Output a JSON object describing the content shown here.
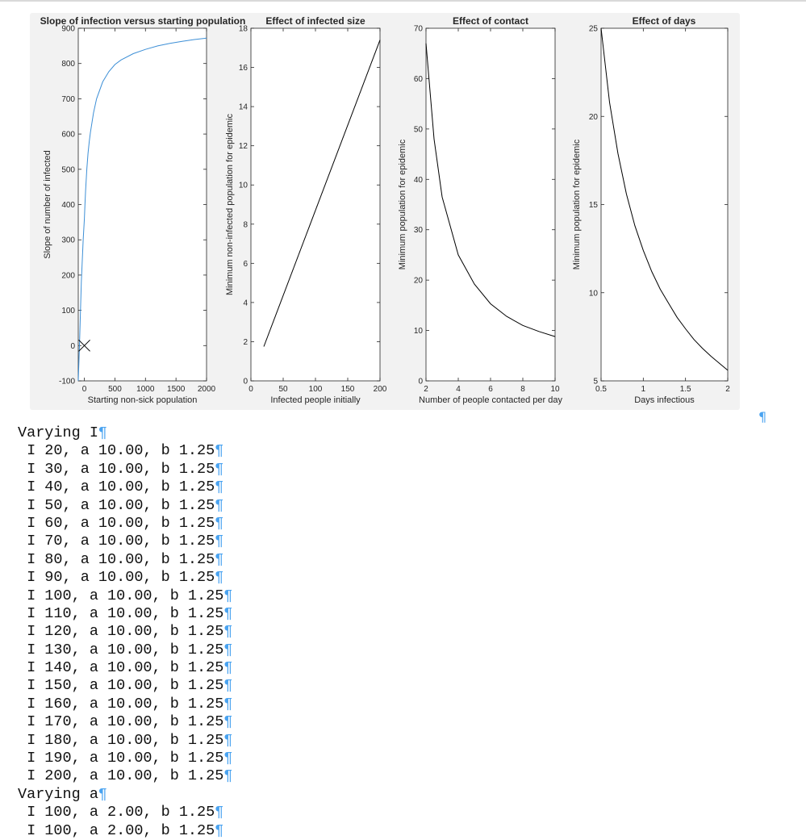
{
  "document": {
    "lines": [
      "Varying I",
      " I 20, a 10.00, b 1.25",
      " I 30, a 10.00, b 1.25",
      " I 40, a 10.00, b 1.25",
      " I 50, a 10.00, b 1.25",
      " I 60, a 10.00, b 1.25",
      " I 70, a 10.00, b 1.25",
      " I 80, a 10.00, b 1.25",
      " I 90, a 10.00, b 1.25",
      " I 100, a 10.00, b 1.25",
      " I 110, a 10.00, b 1.25",
      " I 120, a 10.00, b 1.25",
      " I 130, a 10.00, b 1.25",
      " I 140, a 10.00, b 1.25",
      " I 150, a 10.00, b 1.25",
      " I 160, a 10.00, b 1.25",
      " I 170, a 10.00, b 1.25",
      " I 180, a 10.00, b 1.25",
      " I 190, a 10.00, b 1.25",
      " I 200, a 10.00, b 1.25",
      "Varying a",
      " I 100, a 2.00, b 1.25",
      " I 100, a 2.00, b 1.25"
    ],
    "pilcrow": "¶",
    "pilcrow_color": "#4aa3f0"
  },
  "chart_data": [
    {
      "type": "line",
      "title": "Slope of infection versus starting population",
      "xlabel": "Starting non-sick population",
      "ylabel": "Slope of number of infected",
      "xlim": [
        -100,
        2000
      ],
      "ylim": [
        -100,
        900
      ],
      "xticks": [
        0,
        500,
        1000,
        1500,
        2000
      ],
      "yticks": [
        -100,
        0,
        100,
        200,
        300,
        400,
        500,
        600,
        700,
        800,
        900
      ],
      "line_color": "#3d8fd6",
      "series": [
        {
          "x": [
            -100,
            -80,
            -50,
            -20,
            0,
            10,
            20,
            40,
            60,
            80,
            100,
            150,
            200,
            300,
            400,
            500,
            600,
            800,
            1000,
            1200,
            1400,
            1600,
            1800,
            2000
          ],
          "y": [
            -100,
            0,
            180,
            300,
            360,
            400,
            440,
            500,
            545,
            578,
            605,
            660,
            700,
            748,
            777,
            797,
            810,
            828,
            840,
            850,
            857,
            863,
            868,
            872
          ]
        }
      ],
      "marker": {
        "x": 0,
        "y": 0,
        "symbol": "x"
      }
    },
    {
      "type": "line",
      "title": "Effect of infected size",
      "xlabel": "Infected people initially",
      "ylabel": "Minimum non-infected population for epidemic",
      "xlim": [
        0,
        200
      ],
      "ylim": [
        0,
        18
      ],
      "xticks": [
        0,
        50,
        100,
        150,
        200
      ],
      "yticks": [
        0,
        2,
        4,
        6,
        8,
        10,
        12,
        14,
        16,
        18
      ],
      "line_color": "#000000",
      "series": [
        {
          "x": [
            20,
            200
          ],
          "y": [
            1.75,
            17.4
          ]
        }
      ]
    },
    {
      "type": "line",
      "title": "Effect of contact",
      "xlabel": "Number of people contacted per day",
      "ylabel": "Minimum population for epidemic",
      "xlim": [
        2,
        10
      ],
      "ylim": [
        0,
        70
      ],
      "xticks": [
        2,
        4,
        6,
        8,
        10
      ],
      "yticks": [
        0,
        10,
        20,
        30,
        40,
        50,
        60,
        70
      ],
      "line_color": "#000000",
      "series": [
        {
          "x": [
            2,
            2.5,
            3,
            4,
            5,
            6,
            7,
            8,
            9,
            10
          ],
          "y": [
            67,
            48,
            36.5,
            25,
            19.2,
            15.3,
            12.8,
            11,
            9.8,
            8.8
          ]
        }
      ]
    },
    {
      "type": "line",
      "title": "Effect of days",
      "xlabel": "Days infectious",
      "ylabel": "Minimum population for epidemic",
      "xlim": [
        0.5,
        2
      ],
      "ylim": [
        5,
        25
      ],
      "xticks": [
        0.5,
        1,
        1.5,
        2
      ],
      "yticks": [
        5,
        10,
        15,
        20,
        25
      ],
      "line_color": "#000000",
      "series": [
        {
          "x": [
            0.5,
            0.6,
            0.7,
            0.8,
            0.9,
            1.0,
            1.1,
            1.2,
            1.3,
            1.4,
            1.5,
            1.6,
            1.7,
            1.8,
            1.9,
            2.0
          ],
          "y": [
            25,
            20.8,
            17.9,
            15.6,
            13.8,
            12.4,
            11.2,
            10.2,
            9.4,
            8.6,
            7.95,
            7.35,
            6.85,
            6.4,
            6.0,
            5.6
          ]
        }
      ]
    }
  ]
}
